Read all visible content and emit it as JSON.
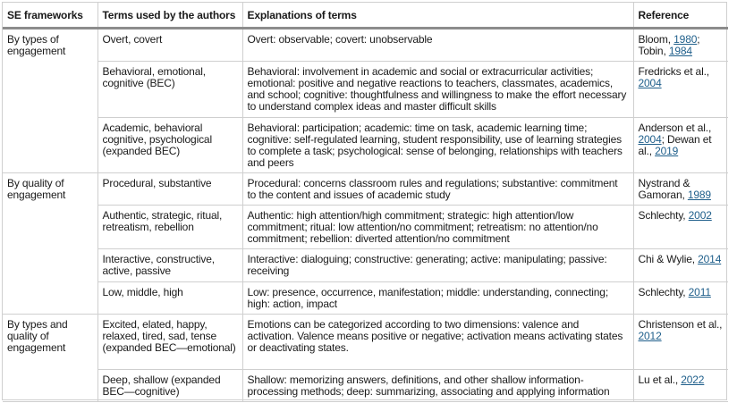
{
  "headers": [
    "SE frameworks",
    "Terms used by the authors",
    "Explanations of terms",
    "Reference"
  ],
  "link_color": "#1f5f8b",
  "groups": [
    {
      "framework": "By types of engagement",
      "rows": [
        {
          "terms": "Overt, covert",
          "explanation": "Overt: observable; covert: unobservable",
          "ref": [
            {
              "t": "Bloom, "
            },
            {
              "t": "1980",
              "link": true
            },
            {
              "t": "; Tobin, "
            },
            {
              "t": "1984",
              "link": true
            }
          ]
        },
        {
          "terms": "Behavioral, emotional, cognitive (BEC)",
          "explanation": "Behavioral: involvement in academic and social or extracurricular activities; emotional: positive and negative reactions to teachers, classmates, academics, and school; cognitive: thoughtfulness and willingness to make the effort necessary to understand complex ideas and master difficult skills",
          "ref": [
            {
              "t": "Fredricks et al., "
            },
            {
              "t": "2004",
              "link": true
            }
          ]
        },
        {
          "terms": "Academic, behavioral cognitive, psychological (expanded BEC)",
          "explanation": "Behavioral: participation; academic: time on task, academic learning time; cognitive: self-regulated learning, student responsibility, use of learning strategies to complete a task; psychological: sense of belonging, relationships with teachers and peers",
          "ref": [
            {
              "t": "Anderson et al., "
            },
            {
              "t": "2004",
              "link": true
            },
            {
              "t": "; Dewan et al., "
            },
            {
              "t": "2019",
              "link": true
            }
          ]
        }
      ]
    },
    {
      "framework": "By quality of engagement",
      "rows": [
        {
          "terms": "Procedural, substantive",
          "explanation": "Procedural: concerns classroom rules and regulations; substantive: commitment to the content and issues of academic study",
          "ref": [
            {
              "t": "Nystrand & Gamoran, "
            },
            {
              "t": "1989",
              "link": true
            }
          ]
        },
        {
          "terms": "Authentic, strategic, ritual, retreatism, rebellion",
          "explanation": "Authentic: high attention/high commitment; strategic: high attention/low commitment; ritual: low attention/no commitment; retreatism: no attention/no commitment; rebellion: diverted attention/no commitment",
          "ref": [
            {
              "t": "Schlechty, "
            },
            {
              "t": "2002",
              "link": true
            }
          ]
        },
        {
          "terms": "Interactive, constructive, active, passive",
          "explanation": "Interactive: dialoguing; constructive: generating; active: manipulating; passive: receiving",
          "ref": [
            {
              "t": "Chi & Wylie, "
            },
            {
              "t": "2014",
              "link": true
            }
          ]
        },
        {
          "terms": "Low, middle, high",
          "explanation": "Low: presence, occurrence, manifestation; middle: understanding, connecting; high: action, impact",
          "ref": [
            {
              "t": "Schlechty, "
            },
            {
              "t": "2011",
              "link": true
            }
          ]
        }
      ]
    },
    {
      "framework": "By types and quality of engagement",
      "rows": [
        {
          "terms": "Excited, elated, happy, relaxed, tired, sad, tense (expanded BEC—emotional)",
          "explanation": "Emotions can be categorized according to two dimensions: valence and activation. Valence means positive or negative; activation means activating states or deactivating states.",
          "ref": [
            {
              "t": "Christenson et al., "
            },
            {
              "t": "2012",
              "link": true
            }
          ]
        },
        {
          "terms": "Deep, shallow (expanded BEC—cognitive)",
          "explanation": "Shallow: memorizing answers, definitions, and other shallow information-processing methods; deep: summarizing, associating and applying information",
          "ref": [
            {
              "t": "Lu et al., "
            },
            {
              "t": "2022",
              "link": true
            }
          ]
        }
      ]
    }
  ]
}
